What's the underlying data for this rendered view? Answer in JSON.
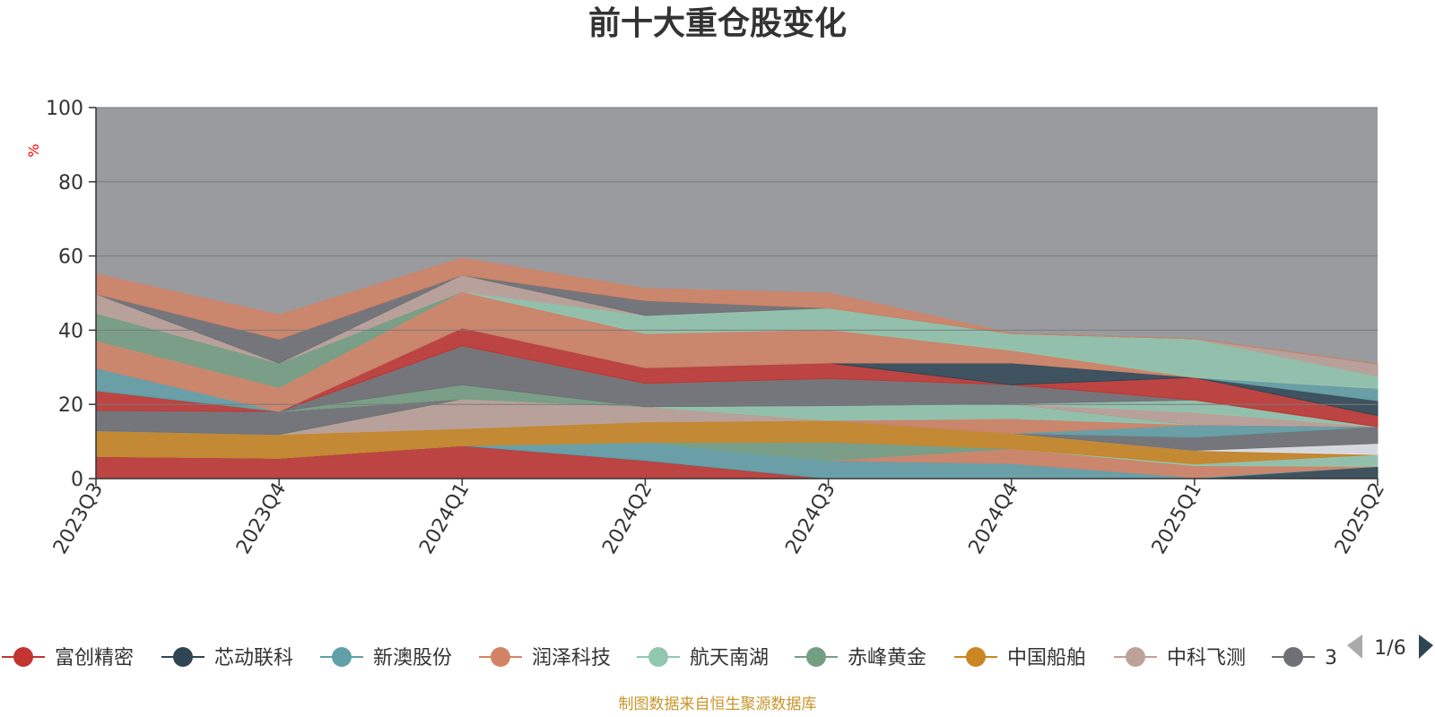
{
  "chart_data": {
    "type": "area",
    "title": "前十大重仓股变化",
    "ylabel": "%",
    "ylim": [
      0,
      100
    ],
    "yticks": [
      0,
      20,
      40,
      60,
      80,
      100
    ],
    "x": [
      "2023Q3",
      "2023Q4",
      "2024Q1",
      "2024Q2",
      "2024Q3",
      "2024Q4",
      "2025Q1",
      "2025Q2"
    ],
    "grid": true,
    "stacked": true,
    "series": [
      {
        "name": "富创精密",
        "color": "#c23531",
        "values": [
          6.0,
          5.5,
          8.9,
          4.9,
          0,
          0,
          0,
          0
        ]
      },
      {
        "name": "芯动联科",
        "color": "#2f4554",
        "values": [
          0,
          0,
          0,
          0,
          0,
          0,
          0,
          3.3
        ]
      },
      {
        "name": "新澳股份",
        "color": "#61a0a8",
        "values": [
          0,
          0,
          0,
          4.9,
          4.9,
          4.1,
          0.3,
          0
        ]
      },
      {
        "name": "润泽科技",
        "color": "#d48265",
        "values": [
          0,
          0,
          0,
          0,
          0,
          4.0,
          3.2,
          0
        ]
      },
      {
        "name": "航天南湖",
        "color": "#91c7ae",
        "values": [
          0,
          0,
          0,
          0,
          0,
          0,
          0.5,
          3.2
        ]
      },
      {
        "name": "赤峰黄金",
        "color": "#749f83",
        "values": [
          0,
          0,
          0,
          0,
          5.0,
          0,
          0,
          0
        ]
      },
      {
        "name": "中国船舶",
        "color": "#ca8622",
        "values": [
          6.9,
          6.4,
          4.6,
          5.5,
          5.8,
          4.1,
          0,
          0
        ]
      },
      {
        "name": "中科飞测",
        "color": "#bda29a",
        "values": [
          0,
          0,
          8.0,
          4.1,
          0,
          0,
          0,
          0
        ]
      }
    ],
    "other_series_note": "",
    "legend_page": "1/6",
    "legend_position": "bottom",
    "background_fill": "#9a9b9e"
  },
  "stack_layers": [
    {
      "color": "#ca8622",
      "values": [
        0,
        0,
        0,
        0,
        0,
        0,
        3.6,
        0
      ]
    },
    {
      "color": "#dfe3ea",
      "values": [
        0,
        0,
        0,
        0,
        0,
        0,
        0,
        3.0
      ]
    },
    {
      "color": "#6e7074",
      "values": [
        0,
        0,
        0,
        0,
        0,
        0,
        3.6,
        4.5
      ]
    },
    {
      "color": "#61a0a8",
      "values": [
        0,
        0,
        0,
        0,
        0,
        0,
        3.3,
        0
      ]
    },
    {
      "color": "#d48265",
      "values": [
        0,
        0,
        0,
        0,
        0,
        4.0,
        0,
        0
      ]
    },
    {
      "color": "#91c7ae",
      "values": [
        0,
        0,
        0,
        0,
        4.0,
        4.0,
        0,
        0
      ]
    },
    {
      "color": "#6e7074",
      "values": [
        5.5,
        6.2,
        0,
        0,
        0,
        0,
        0,
        0
      ]
    },
    {
      "color": "#c23531",
      "values": [
        5.3,
        0,
        0,
        0,
        0,
        0,
        0,
        0
      ]
    },
    {
      "color": "#bda29a",
      "values": [
        0,
        0,
        0,
        0,
        0,
        0,
        3.4,
        0
      ]
    },
    {
      "color": "#91c7ae",
      "values": [
        0,
        0,
        0,
        0,
        0,
        0,
        3.3,
        0
      ]
    },
    {
      "color": "#749f83",
      "values": [
        0,
        0,
        3.8,
        0,
        0,
        0,
        0,
        0
      ]
    },
    {
      "color": "#6e7074",
      "values": [
        0,
        0,
        10.5,
        6.3,
        7.3,
        5.1,
        0,
        0
      ]
    },
    {
      "color": "#c23531",
      "values": [
        0,
        0,
        4.8,
        4.2,
        4.2,
        0,
        6.1,
        3.0
      ]
    },
    {
      "color": "#2f4554",
      "values": [
        0,
        0,
        0,
        0,
        0,
        5.9,
        0,
        4.0
      ]
    },
    {
      "color": "#61a0a8",
      "values": [
        6.1,
        0,
        0,
        0,
        0,
        0,
        0,
        3.3
      ]
    },
    {
      "color": "#d48265",
      "values": [
        7.4,
        6.5,
        9.8,
        9.2,
        9.0,
        3.4,
        0,
        0
      ]
    },
    {
      "color": "#91c7ae",
      "values": [
        0,
        0,
        0,
        4.9,
        5.8,
        4.5,
        10.4,
        3.3
      ]
    },
    {
      "color": "#749f83",
      "values": [
        7.4,
        6.5,
        0,
        0,
        0,
        0,
        0,
        0
      ]
    },
    {
      "color": "#bda29a",
      "values": [
        5.2,
        0,
        4.5,
        0,
        0,
        0,
        0,
        3.3
      ]
    },
    {
      "color": "#6e7074",
      "values": [
        0,
        6.5,
        0,
        4.0,
        0,
        0,
        0,
        0
      ]
    },
    {
      "color": "#d48265",
      "values": [
        5.3,
        6.5,
        4.5,
        3.2,
        4.0,
        0,
        0,
        0
      ]
    }
  ],
  "legend": [
    {
      "name": "富创精密",
      "color": "#c23531"
    },
    {
      "name": "芯动联科",
      "color": "#2f4554"
    },
    {
      "name": "新澳股份",
      "color": "#61a0a8"
    },
    {
      "name": "润泽科技",
      "color": "#d48265"
    },
    {
      "name": "航天南湖",
      "color": "#91c7ae"
    },
    {
      "name": "赤峰黄金",
      "color": "#749f83"
    },
    {
      "name": "中国船舶",
      "color": "#ca8622"
    },
    {
      "name": "中科飞测",
      "color": "#bda29a"
    },
    {
      "name": "3",
      "color": "#6e7074"
    }
  ],
  "pager": {
    "text": "1/6",
    "prev_icon": "triangle-left-icon",
    "next_icon": "triangle-right-icon"
  },
  "source": "制图数据来自恒生聚源数据库"
}
